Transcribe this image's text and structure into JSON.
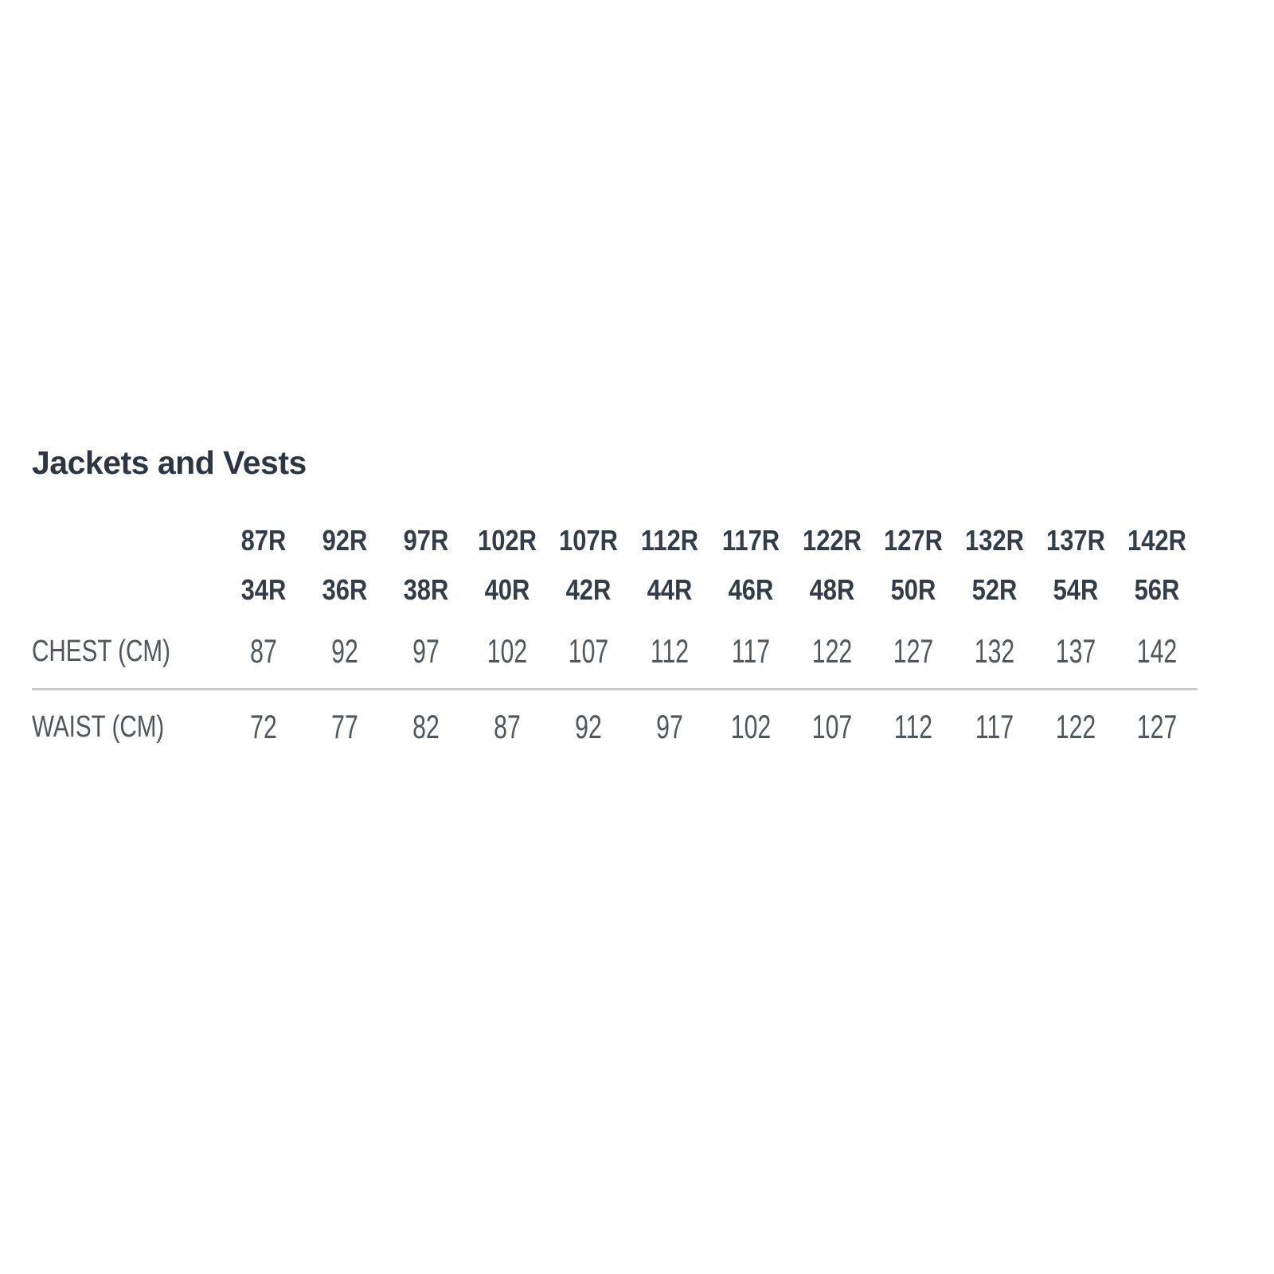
{
  "chart_data": {
    "type": "table",
    "title": "Jackets and Vests",
    "columns_eu": [
      "87R",
      "92R",
      "97R",
      "102R",
      "107R",
      "112R",
      "117R",
      "122R",
      "127R",
      "132R",
      "137R",
      "142R"
    ],
    "columns_us": [
      "34R",
      "36R",
      "38R",
      "40R",
      "42R",
      "44R",
      "46R",
      "48R",
      "50R",
      "52R",
      "54R",
      "56R"
    ],
    "rows": [
      {
        "label": "CHEST (CM)",
        "values": [
          87,
          92,
          97,
          102,
          107,
          112,
          117,
          122,
          127,
          132,
          137,
          142
        ]
      },
      {
        "label": "WAIST (CM)",
        "values": [
          72,
          77,
          82,
          87,
          92,
          97,
          102,
          107,
          112,
          117,
          122,
          127
        ]
      }
    ],
    "layout": {
      "header_rows": 2,
      "divider_between_data_rows": true,
      "grid": "off"
    }
  },
  "colors": {
    "background": "#ffffff",
    "title_text": "#2c3541",
    "header_text": "#333d49",
    "body_text": "#51565b",
    "divider": "#c7c8c8"
  }
}
